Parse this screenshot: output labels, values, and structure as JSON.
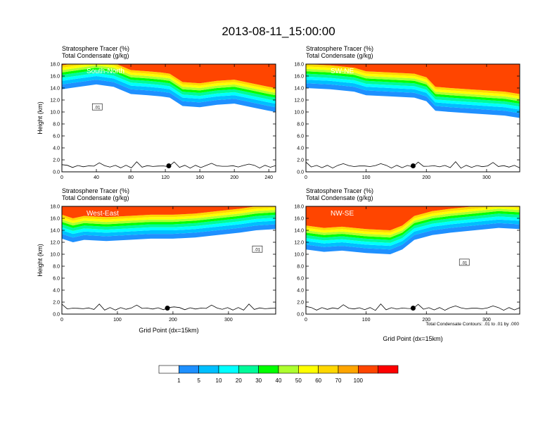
{
  "figure": {
    "title": "2013-08-11_15:00:00",
    "footnote": "Total Condensate Contours: .01 to .01 by .000"
  },
  "chart_data": [
    {
      "type": "heatmap",
      "name": "South-North",
      "titles": [
        "Stratosphere Tracer   (%)",
        "Total Condensate   (g/kg)"
      ],
      "ylabel": "Height (km)",
      "xlabel": "",
      "xlim": [
        0,
        248
      ],
      "ylim": [
        0,
        18
      ],
      "xticks": [
        "0",
        "40",
        "80",
        "120",
        "160",
        "200",
        "240"
      ],
      "xtick_values": [
        0,
        40,
        80,
        120,
        160,
        200,
        240
      ],
      "yticks": [
        "0.0",
        "2.0",
        "4.0",
        "6.0",
        "8.0",
        "10.0",
        "12.0",
        "14.0",
        "16.0",
        "18.0"
      ],
      "tropopause_km": [
        [
          0,
          13.8
        ],
        [
          20,
          14.2
        ],
        [
          40,
          14.6
        ],
        [
          60,
          14.2
        ],
        [
          80,
          13.0
        ],
        [
          100,
          12.8
        ],
        [
          115,
          12.6
        ],
        [
          125,
          12.4
        ],
        [
          140,
          11.0
        ],
        [
          160,
          10.8
        ],
        [
          180,
          11.2
        ],
        [
          200,
          11.4
        ],
        [
          220,
          10.8
        ],
        [
          240,
          10.2
        ],
        [
          248,
          10.0
        ]
      ],
      "marker_x": 124,
      "cloud_label": ".01",
      "cloud_label_pos": [
        41,
        10.8
      ]
    },
    {
      "type": "heatmap",
      "name": "SW-NE",
      "titles": [
        "Stratosphere Tracer   (%)",
        "Total Condensate   (g/kg)"
      ],
      "ylabel": "",
      "xlabel": "",
      "xlim": [
        0,
        355
      ],
      "ylim": [
        0,
        18
      ],
      "xticks": [
        "0",
        "100",
        "200",
        "300"
      ],
      "xtick_values": [
        0,
        100,
        200,
        300
      ],
      "yticks": [
        "0.0",
        "2.0",
        "4.0",
        "6.0",
        "8.0",
        "10.0",
        "12.0",
        "14.0",
        "16.0",
        "18.0"
      ],
      "tropopause_km": [
        [
          0,
          14.0
        ],
        [
          40,
          13.8
        ],
        [
          80,
          13.4
        ],
        [
          100,
          12.8
        ],
        [
          140,
          12.6
        ],
        [
          180,
          12.4
        ],
        [
          200,
          11.8
        ],
        [
          215,
          10.2
        ],
        [
          240,
          10.0
        ],
        [
          270,
          9.8
        ],
        [
          300,
          9.6
        ],
        [
          330,
          9.4
        ],
        [
          355,
          9.0
        ]
      ],
      "marker_x": 178,
      "cloud_label": "",
      "cloud_label_pos": [
        0,
        0
      ]
    },
    {
      "type": "heatmap",
      "name": "West-East",
      "titles": [
        "Stratosphere Tracer   (%)",
        "Total Condensate   (g/kg)"
      ],
      "ylabel": "Height (km)",
      "xlabel": "Grid Point (dx=15km)",
      "xlim": [
        0,
        385
      ],
      "ylim": [
        0,
        18
      ],
      "xticks": [
        "0",
        "100",
        "200",
        "300"
      ],
      "xtick_values": [
        0,
        100,
        200,
        300
      ],
      "yticks": [
        "0.0",
        "2.0",
        "4.0",
        "6.0",
        "8.0",
        "10.0",
        "12.0",
        "14.0",
        "16.0",
        "18.0"
      ],
      "tropopause_km": [
        [
          0,
          12.6
        ],
        [
          20,
          12.0
        ],
        [
          40,
          12.4
        ],
        [
          80,
          12.2
        ],
        [
          120,
          12.4
        ],
        [
          160,
          12.6
        ],
        [
          200,
          12.6
        ],
        [
          240,
          12.8
        ],
        [
          280,
          13.2
        ],
        [
          320,
          13.6
        ],
        [
          350,
          14.0
        ],
        [
          385,
          14.2
        ]
      ],
      "marker_x": 190,
      "cloud_label": ".01",
      "cloud_label_pos": [
        352,
        10.8
      ]
    },
    {
      "type": "heatmap",
      "name": "NW-SE",
      "titles": [
        "Stratosphere Tracer   (%)",
        "Total Condensate   (g/kg)"
      ],
      "ylabel": "",
      "xlabel": "Grid Point (dx=15km)",
      "xlim": [
        0,
        355
      ],
      "ylim": [
        0,
        18
      ],
      "xticks": [
        "0",
        "100",
        "200",
        "300"
      ],
      "xtick_values": [
        0,
        100,
        200,
        300
      ],
      "yticks": [
        "0.0",
        "2.0",
        "4.0",
        "6.0",
        "8.0",
        "10.0",
        "12.0",
        "14.0",
        "16.0",
        "18.0"
      ],
      "tropopause_km": [
        [
          0,
          10.8
        ],
        [
          30,
          10.4
        ],
        [
          60,
          10.6
        ],
        [
          100,
          10.2
        ],
        [
          140,
          10.0
        ],
        [
          160,
          10.8
        ],
        [
          180,
          12.4
        ],
        [
          210,
          13.2
        ],
        [
          240,
          13.6
        ],
        [
          280,
          14.0
        ],
        [
          320,
          14.4
        ],
        [
          355,
          14.2
        ]
      ],
      "marker_x": 178,
      "cloud_label": ".01",
      "cloud_label_pos": [
        263,
        8.6
      ]
    }
  ],
  "colorbar": {
    "labels": [
      "1",
      "5",
      "10",
      "20",
      "30",
      "40",
      "50",
      "60",
      "70",
      "100"
    ],
    "colors": [
      "#ffffff",
      "#1e90ff",
      "#00bfff",
      "#00ffff",
      "#00fa9a",
      "#00ff00",
      "#adff2f",
      "#ffff00",
      "#ffd700",
      "#ffa500",
      "#ff4500",
      "#ff0000"
    ]
  }
}
